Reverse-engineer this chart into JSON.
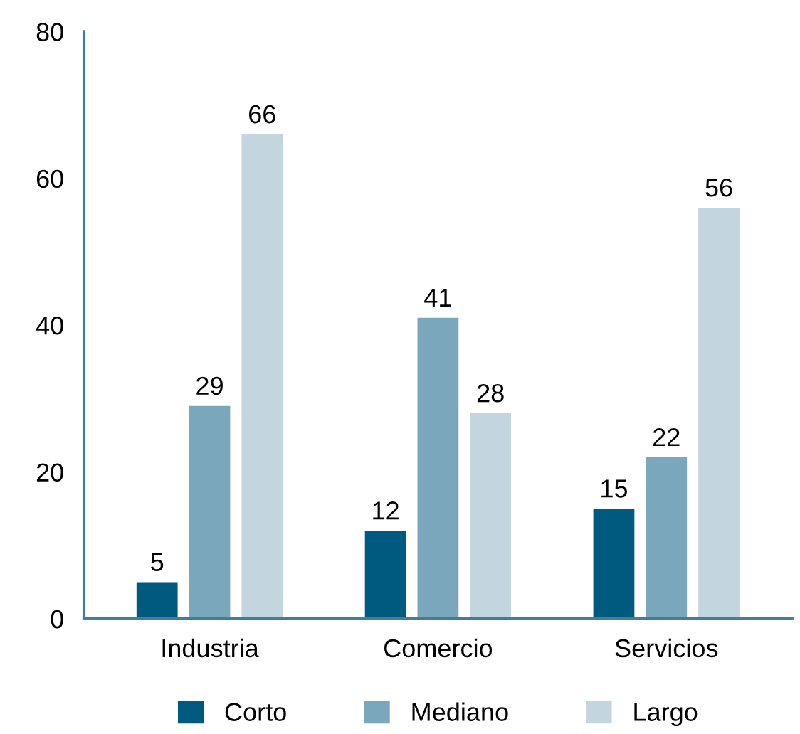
{
  "chart_data": {
    "type": "bar",
    "categories": [
      "Industria",
      "Comercio",
      "Servicios"
    ],
    "series": [
      {
        "name": "Corto",
        "color": "#005a80",
        "values": [
          5,
          12,
          15
        ]
      },
      {
        "name": "Mediano",
        "color": "#7ba7bd",
        "values": [
          29,
          41,
          22
        ]
      },
      {
        "name": "Largo",
        "color": "#c3d5df",
        "values": [
          66,
          28,
          56
        ]
      }
    ],
    "ylim": [
      0,
      80
    ],
    "yticks": [
      0,
      20,
      40,
      60,
      80
    ],
    "grid": false,
    "legend": "bottom",
    "data_labels": true
  }
}
